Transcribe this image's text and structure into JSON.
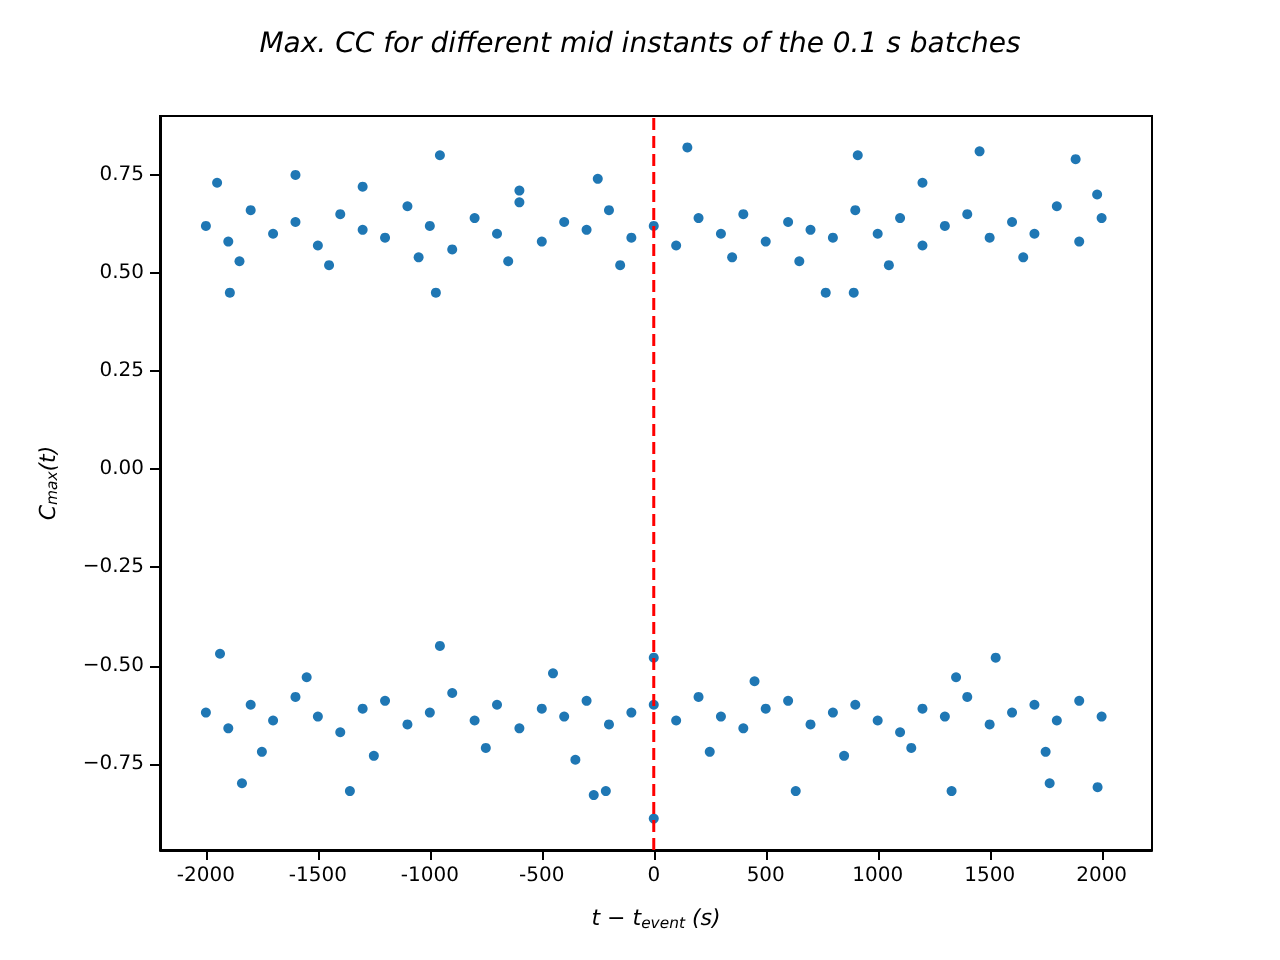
{
  "chart_data": {
    "type": "scatter",
    "title": "Max. CC for different mid instants of the 0.1 s batches",
    "xlabel": "t − t$_{event}$ (s)",
    "ylabel": "C$_{max}$(t)",
    "xlim": [
      -2205,
      2225
    ],
    "ylim": [
      -0.97,
      0.9
    ],
    "xticks": [
      -2000,
      -1500,
      -1000,
      -500,
      0,
      500,
      1000,
      1500,
      2000
    ],
    "yticks": [
      {
        "value": -0.75,
        "label": "−0.75"
      },
      {
        "value": -0.5,
        "label": "−0.50"
      },
      {
        "value": -0.25,
        "label": "−0.25"
      },
      {
        "value": 0,
        "label": "0.00"
      },
      {
        "value": 0.25,
        "label": "0.25"
      },
      {
        "value": 0.5,
        "label": "0.50"
      },
      {
        "value": 0.75,
        "label": "0.75"
      }
    ],
    "grid": false,
    "marker": "circle",
    "ref_lines": [
      {
        "axis": "x",
        "value": 0,
        "color": "#ff0000",
        "line_style": "dashed"
      }
    ],
    "series": [
      {
        "color": "#1f77b4",
        "x": [
          -2000,
          -1900,
          -1800,
          -1700,
          -1600,
          -1500,
          -1400,
          -1300,
          -1200,
          -1100,
          -1000,
          -900,
          -800,
          -700,
          -600,
          -500,
          -400,
          -300,
          -200,
          -100,
          0,
          100,
          200,
          300,
          400,
          500,
          600,
          700,
          800,
          900,
          1000,
          1100,
          1200,
          1300,
          1400,
          1500,
          1600,
          1700,
          1800,
          1900,
          2000,
          -1950,
          -1893,
          -1600,
          -1300,
          -973,
          -955,
          -600,
          -250,
          150,
          768,
          893,
          911,
          1200,
          1455,
          1884,
          1980,
          -1850,
          -1450,
          -1050,
          -650,
          -150,
          350,
          650,
          1050,
          1650,
          -2000,
          -1900,
          -1800,
          -1700,
          -1600,
          -1500,
          -1400,
          -1300,
          -1200,
          -1100,
          -1000,
          -900,
          -800,
          -700,
          -600,
          -500,
          -400,
          -300,
          -200,
          -100,
          0,
          100,
          200,
          300,
          400,
          500,
          600,
          700,
          800,
          900,
          1000,
          1100,
          1200,
          1300,
          1400,
          1500,
          1600,
          1700,
          1800,
          1900,
          2000,
          -1937,
          -1839,
          -1357,
          -955,
          -268,
          -214,
          0,
          0,
          634,
          1330,
          1527,
          1768,
          1982,
          -1750,
          -1250,
          -750,
          -350,
          250,
          850,
          1150,
          1750,
          -1550,
          -450,
          450,
          1350
        ],
        "values": [
          0.62,
          0.58,
          0.66,
          0.6,
          0.63,
          0.57,
          0.65,
          0.61,
          0.59,
          0.67,
          0.62,
          0.56,
          0.64,
          0.6,
          0.68,
          0.58,
          0.63,
          0.61,
          0.66,
          0.59,
          0.62,
          0.57,
          0.64,
          0.6,
          0.65,
          0.58,
          0.63,
          0.61,
          0.59,
          0.66,
          0.6,
          0.64,
          0.57,
          0.62,
          0.65,
          0.59,
          0.63,
          0.6,
          0.67,
          0.58,
          0.64,
          0.73,
          0.45,
          0.75,
          0.72,
          0.45,
          0.8,
          0.71,
          0.74,
          0.82,
          0.45,
          0.45,
          0.8,
          0.73,
          0.81,
          0.79,
          0.7,
          0.53,
          0.52,
          0.54,
          0.53,
          0.52,
          0.54,
          0.53,
          0.52,
          0.54,
          -0.62,
          -0.66,
          -0.6,
          -0.64,
          -0.58,
          -0.63,
          -0.67,
          -0.61,
          -0.59,
          -0.65,
          -0.62,
          -0.57,
          -0.64,
          -0.6,
          -0.66,
          -0.61,
          -0.63,
          -0.59,
          -0.65,
          -0.62,
          -0.6,
          -0.64,
          -0.58,
          -0.63,
          -0.66,
          -0.61,
          -0.59,
          -0.65,
          -0.62,
          -0.6,
          -0.64,
          -0.67,
          -0.61,
          -0.63,
          -0.58,
          -0.65,
          -0.62,
          -0.6,
          -0.64,
          -0.59,
          -0.63,
          -0.47,
          -0.8,
          -0.82,
          -0.45,
          -0.83,
          -0.82,
          -0.89,
          -0.48,
          -0.82,
          -0.82,
          -0.48,
          -0.8,
          -0.81,
          -0.72,
          -0.73,
          -0.71,
          -0.74,
          -0.72,
          -0.73,
          -0.71,
          -0.72,
          -0.53,
          -0.52,
          -0.54,
          -0.53
        ]
      }
    ]
  }
}
